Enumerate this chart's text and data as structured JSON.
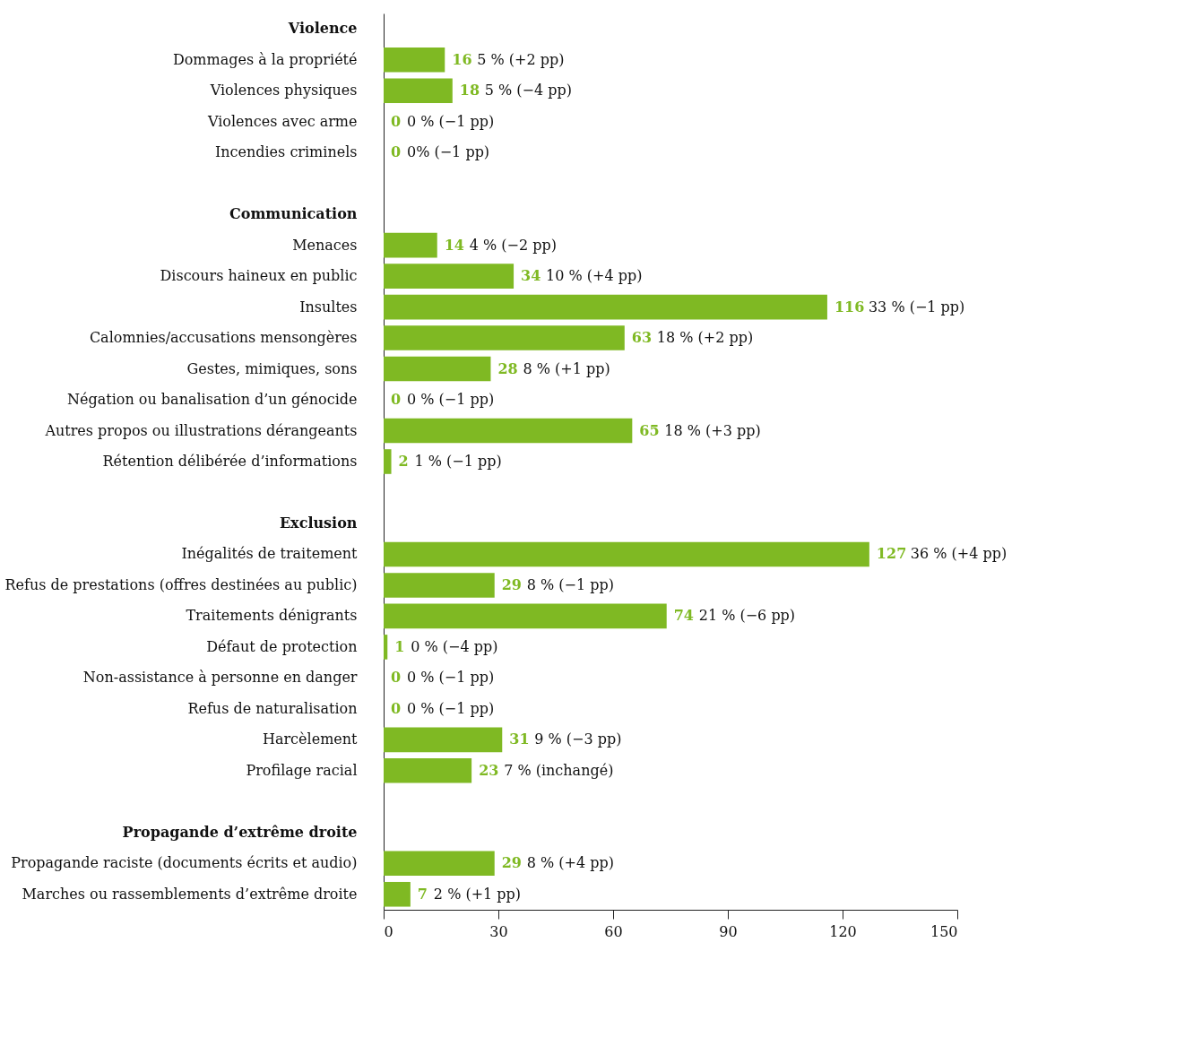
{
  "chart_data": {
    "type": "bar",
    "orientation": "horizontal",
    "categories": [
      "Violence",
      "Dommages à la propriété",
      "Violences physiques",
      "Violences avec arme",
      "Incendies criminels",
      null,
      "Communication",
      "Menaces",
      "Discours haineux en public",
      "Insultes",
      "Calomnies/accusations mensongères",
      "Gestes, mimiques, sons",
      "Négation ou banalisation d’un génocide",
      "Autres propos ou illustrations dérangeants",
      "Rétention délibérée d’informations",
      null,
      "Exclusion",
      "Inégalités de traitement",
      "Refus de prestations (offres destinées au public)",
      "Traitements dénigrants",
      "Défaut de protection",
      "Non-assistance à personne en danger",
      "Refus de naturalisation",
      "Harcèlement",
      "Profilage racial",
      null,
      "Propagande d’extrême droite",
      "Propagande raciste (documents écrits et audio)",
      "Marches ou rassemblements d’extrême droite"
    ],
    "series": [
      {
        "color": "#7fb923",
        "values": [
          null,
          16,
          18,
          0,
          0,
          null,
          null,
          14,
          34,
          116,
          63,
          28,
          0,
          65,
          2,
          null,
          null,
          127,
          29,
          74,
          1,
          0,
          0,
          31,
          23,
          null,
          null,
          29,
          7
        ],
        "value_labels": [
          null,
          "16 5 %  (+2 pp)",
          "18 5 %  (−4 pp)",
          "0 0 %  (−1 pp)",
          "0 0%  (−1 pp)",
          null,
          null,
          "14 4 %  (−2 pp)",
          "34 10 %  (+4 pp)",
          "116 33 %  (−1 pp)",
          "63 18 %  (+2 pp)",
          "28 8 %  (+1 pp)",
          "0 0 %  (−1 pp)",
          "65 18 %  (+3 pp)",
          "2 1 %  (−1 pp)",
          null,
          null,
          "127 36 %  (+4 pp)",
          "29 8 %  (−1 pp)",
          "74 21 %  (−6 pp)",
          "1 0 %  (−4 pp)",
          "0 0 %  (−1 pp)",
          "0 0 %  (−1 pp)",
          "31 9 %  (−3 pp)",
          "23 7 %  (inchangé)",
          null,
          null,
          "29 8 %  (+4 pp)",
          "7 2 %  (+1 pp)"
        ]
      }
    ],
    "xlim": [
      0,
      150
    ],
    "xticks": [
      0,
      30,
      60,
      90,
      120,
      150
    ],
    "grid": false
  }
}
